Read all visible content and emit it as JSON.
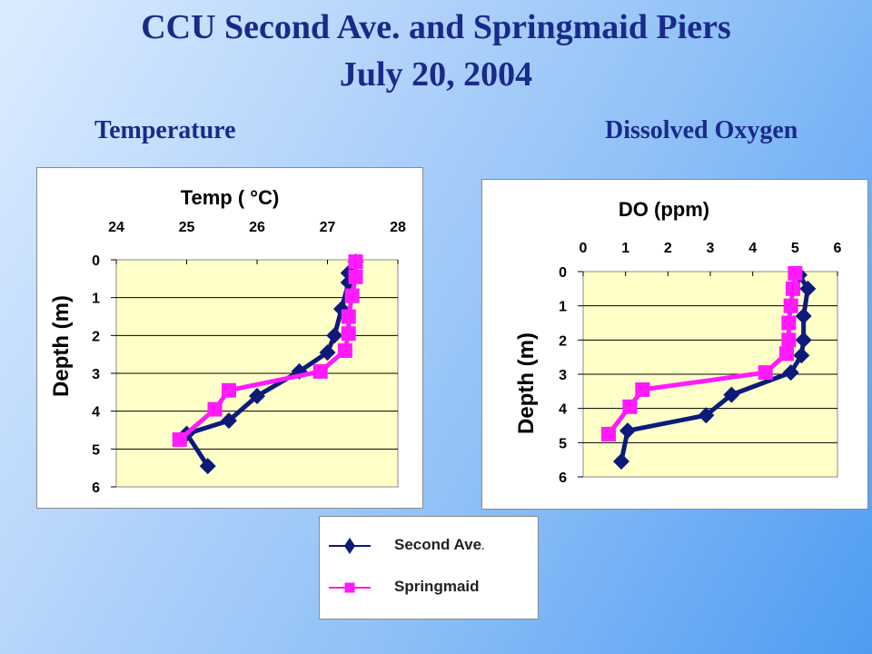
{
  "title_line1": "CCU Second Ave. and Springmaid Piers",
  "title_line2": "July 20, 2004",
  "section_left": "Temperature",
  "section_right": "Dissolved Oxygen",
  "colors": {
    "second_ave": "#0d1a7a",
    "springmaid": "#ff1aff",
    "plot_bg": "#ffffc8",
    "title": "#1a2a8a"
  },
  "legend": {
    "items": [
      {
        "label": "Second Ave",
        "suffix": ".",
        "marker": "diamond"
      },
      {
        "label": "Springmaid",
        "suffix": "",
        "marker": "square"
      }
    ]
  },
  "chart_data": [
    {
      "type": "line",
      "title": "Temp ( °C)",
      "xlabel": "Temp ( °C)",
      "ylabel": "Depth (m)",
      "x_axis_position": "top",
      "y_inverted": true,
      "xlim": [
        24,
        28
      ],
      "ylim": [
        0,
        6
      ],
      "xticks": [
        "24",
        "25",
        "26",
        "27",
        "28"
      ],
      "yticks": [
        "0",
        "1",
        "2",
        "3",
        "4",
        "5",
        "6"
      ],
      "grid": "horizontal",
      "series": [
        {
          "name": "Second Ave",
          "marker": "diamond",
          "points": [
            [
              27.4,
              0.05
            ],
            [
              27.3,
              0.35
            ],
            [
              27.3,
              0.6
            ],
            [
              27.2,
              1.3
            ],
            [
              27.1,
              2.0
            ],
            [
              27.0,
              2.45
            ],
            [
              26.6,
              2.95
            ],
            [
              26.0,
              3.6
            ],
            [
              25.6,
              4.25
            ],
            [
              25.0,
              4.6
            ],
            [
              25.3,
              5.45
            ]
          ]
        },
        {
          "name": "Springmaid",
          "marker": "square",
          "points": [
            [
              27.4,
              0.05
            ],
            [
              27.4,
              0.45
            ],
            [
              27.35,
              0.95
            ],
            [
              27.3,
              1.5
            ],
            [
              27.3,
              1.95
            ],
            [
              27.25,
              2.4
            ],
            [
              26.9,
              2.95
            ],
            [
              25.6,
              3.45
            ],
            [
              25.4,
              3.95
            ],
            [
              24.9,
              4.75
            ]
          ]
        }
      ]
    },
    {
      "type": "line",
      "title": "DO (ppm)",
      "xlabel": "DO (ppm)",
      "ylabel": "Depth (m)",
      "x_axis_position": "top",
      "y_inverted": true,
      "xlim": [
        0,
        6
      ],
      "ylim": [
        0,
        6
      ],
      "xticks": [
        "0",
        "1",
        "2",
        "3",
        "4",
        "5",
        "6"
      ],
      "yticks": [
        "0",
        "1",
        "2",
        "3",
        "4",
        "5",
        "6"
      ],
      "grid": "horizontal",
      "series": [
        {
          "name": "Second Ave",
          "marker": "diamond",
          "points": [
            [
              5.1,
              0.1
            ],
            [
              5.3,
              0.5
            ],
            [
              5.2,
              1.3
            ],
            [
              5.2,
              2.0
            ],
            [
              5.15,
              2.45
            ],
            [
              4.9,
              2.95
            ],
            [
              3.5,
              3.6
            ],
            [
              2.9,
              4.2
            ],
            [
              1.05,
              4.65
            ],
            [
              0.9,
              5.55
            ]
          ]
        },
        {
          "name": "Springmaid",
          "marker": "square",
          "points": [
            [
              5.0,
              0.05
            ],
            [
              4.95,
              0.5
            ],
            [
              4.9,
              1.0
            ],
            [
              4.85,
              1.5
            ],
            [
              4.85,
              2.0
            ],
            [
              4.8,
              2.4
            ],
            [
              4.3,
              2.95
            ],
            [
              1.4,
              3.45
            ],
            [
              1.1,
              3.95
            ],
            [
              0.6,
              4.75
            ]
          ]
        }
      ]
    }
  ]
}
